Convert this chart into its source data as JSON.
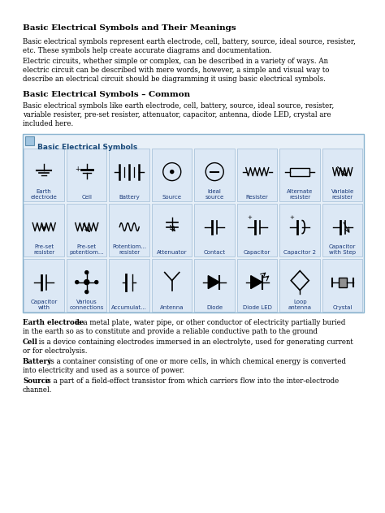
{
  "title": "Basic Electrical Symbols and Their Meanings",
  "bg_color": "#ffffff",
  "para1_line1": "Basic electrical symbols represent earth electrode, cell, battery, source, ideal source, resister,",
  "para1_line2": "etc. These symbols help create accurate diagrams and documentation.",
  "para2_line1": "Electric circuits, whether simple or complex, can be described in a variety of ways. An",
  "para2_line2": "electric circuit can be described with mere words, however, a simple and visual way to",
  "para2_line3": "describe an electrical circuit should be diagramming it using basic electrical symbols.",
  "subtitle": "Basic Electrical Symbols – Common",
  "para3_line1": "Basic electrical symbols like earth electrode, cell, battery, source, ideal source, resister,",
  "para3_line2": "variable resister, pre-set resister, attenuator, capacitor, antenna, diode LED, crystal are",
  "para3_line3": "included here.",
  "table_title": "Basic Electrical Symbols",
  "table_bg": "#e8f0f8",
  "table_border": "#8ab4d0",
  "cell_bg": "#dce8f5",
  "icon_color": "#5a8ab0",
  "title_text_color": "#1a4a7a",
  "label_color": "#1a3a7a",
  "grid_rows": [
    [
      "Earth\nelectrode",
      "Cell",
      "Battery",
      "Source",
      "Ideal\nsource",
      "Resister",
      "Alternate\nresister",
      "Variable\nresister"
    ],
    [
      "Pre-set\nresister",
      "Pre-set\npotentiom...",
      "Potentiom...\nresister",
      "Attenuator",
      "Contact",
      "Capacitor",
      "Capacitor 2",
      "Capacitor\nwith Step"
    ],
    [
      "Capacitor\nwith",
      "Various\nconnections",
      "Accumulat...",
      "Antenna",
      "Diode",
      "Diode LED",
      "Loop\nantenna",
      "Crystal"
    ]
  ],
  "def1_term": "Earth electrode",
  "def1_rest": " is a metal plate, water pipe, or other conductor of electricity partially buried",
  "def1_line2": "in the earth so as to constitute and provide a reliable conductive path to the ground",
  "def2_term": "Cell",
  "def2_rest": " is a device containing electrodes immersed in an electrolyte, used for generating current",
  "def2_line2": "or for electrolysis.",
  "def3_term": "Battery",
  "def3_rest": " is a container consisting of one or more cells, in which chemical energy is converted",
  "def3_line2": "into electricity and used as a source of power.",
  "def4_term": "Source",
  "def4_rest": " is a part of a field-effect transistor from which carriers flow into the inter-electrode",
  "def4_line2": "channel."
}
